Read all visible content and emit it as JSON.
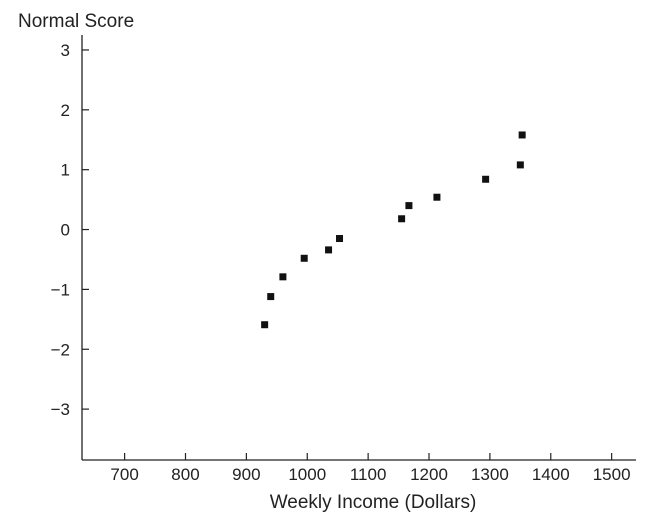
{
  "chart_data": {
    "type": "scatter",
    "title": "",
    "xlabel": "Weekly Income (Dollars)",
    "ylabel": "Normal Score",
    "xlim": [
      630,
      1540
    ],
    "ylim": [
      -3.85,
      3.25
    ],
    "x_ticks": [
      700,
      800,
      900,
      1000,
      1100,
      1200,
      1300,
      1400,
      1500
    ],
    "y_ticks": [
      3,
      2,
      1,
      0,
      -1,
      -2,
      -3
    ],
    "x_tick_labels": [
      "700",
      "800",
      "900",
      "1000",
      "1100",
      "1200",
      "1300",
      "1400",
      "1500"
    ],
    "y_tick_labels": [
      "3",
      "2",
      "1",
      "0",
      "−1",
      "−2",
      "−3"
    ],
    "grid": false,
    "marker": "square",
    "series": [
      {
        "x": [
          930,
          940,
          960,
          995,
          1035,
          1053,
          1155,
          1167,
          1213,
          1293,
          1350,
          1353
        ],
        "y": [
          -1.59,
          -1.12,
          -0.79,
          -0.48,
          -0.34,
          -0.15,
          0.18,
          0.4,
          0.54,
          0.84,
          1.08,
          1.58
        ]
      }
    ],
    "colors": {
      "marker": "#111111",
      "axis": "#222222",
      "text": "#222222"
    }
  }
}
